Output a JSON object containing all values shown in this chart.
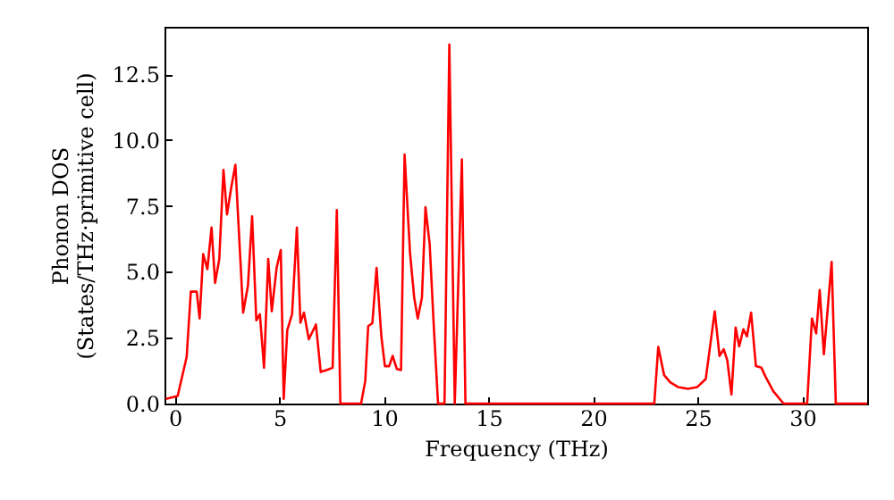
{
  "chart_data": {
    "type": "line",
    "xlabel": "Frequency (THz)",
    "ylabel": "Phonon DOS\n(States/THz·primitive cell)",
    "xlim": [
      -0.5,
      33.1
    ],
    "ylim": [
      0,
      14.3
    ],
    "xticks": [
      0,
      5,
      10,
      15,
      20,
      25,
      30
    ],
    "yticks": [
      {
        "value": 0,
        "label": "0.0"
      },
      {
        "value": 2.5,
        "label": "2.5"
      },
      {
        "value": 5,
        "label": "5.0"
      },
      {
        "value": 7.5,
        "label": "7.5"
      },
      {
        "value": 10,
        "label": "10.0"
      },
      {
        "value": 12.5,
        "label": "12.5"
      }
    ],
    "grid": false,
    "marker": "none",
    "line_style": "solid",
    "series": [
      {
        "color": "#ff0000",
        "x": [
          -0.44,
          0.13,
          0.56,
          0.76,
          1.04,
          1.18,
          1.35,
          1.55,
          1.75,
          1.92,
          2.12,
          2.32,
          2.49,
          2.69,
          2.89,
          3.26,
          3.49,
          3.69,
          3.89,
          4.06,
          4.26,
          4.46,
          4.63,
          4.86,
          5.06,
          5.2,
          5.37,
          5.6,
          5.83,
          6.0,
          6.17,
          6.4,
          6.74,
          6.97,
          7.25,
          7.54,
          7.74,
          7.91,
          8.9,
          9.1,
          9.24,
          9.44,
          9.64,
          9.87,
          10.04,
          10.24,
          10.41,
          10.61,
          10.81,
          10.98,
          11.24,
          11.44,
          11.61,
          11.81,
          11.98,
          12.18,
          12.38,
          12.58,
          12.89,
          13.12,
          13.38,
          13.72,
          13.89,
          22.92,
          23.11,
          23.39,
          23.68,
          24.05,
          24.53,
          24.98,
          25.38,
          25.81,
          26.04,
          26.24,
          26.41,
          26.61,
          26.81,
          26.98,
          27.18,
          27.35,
          27.55,
          27.78,
          28.04,
          28.24,
          28.61,
          29.1,
          30.23,
          30.46,
          30.66,
          30.83,
          31.03,
          31.4,
          31.6,
          33.1
        ],
        "values": [
          0.18,
          0.29,
          1.77,
          4.25,
          4.25,
          3.23,
          5.67,
          5.1,
          6.68,
          4.58,
          5.49,
          8.87,
          7.18,
          8.19,
          9.06,
          3.45,
          4.47,
          7.11,
          3.16,
          3.39,
          1.36,
          5.49,
          3.5,
          5.15,
          5.83,
          0.18,
          2.78,
          3.39,
          6.68,
          3.07,
          3.45,
          2.44,
          3.0,
          1.2,
          1.27,
          1.36,
          7.34,
          0,
          0,
          0.86,
          2.94,
          3.05,
          5.15,
          2.55,
          1.42,
          1.42,
          1.81,
          1.31,
          1.27,
          9.45,
          5.72,
          4.02,
          3.23,
          4.02,
          7.45,
          6.05,
          2.89,
          0,
          0,
          13.63,
          0,
          9.27,
          0,
          0,
          2.15,
          1.08,
          0.81,
          0.63,
          0.56,
          0.63,
          0.93,
          3.5,
          1.81,
          2.06,
          1.65,
          0.34,
          2.89,
          2.17,
          2.82,
          2.55,
          3.45,
          1.42,
          1.36,
          1.02,
          0.47,
          0,
          0,
          3.23,
          2.66,
          4.31,
          1.87,
          5.38,
          0,
          0
        ]
      }
    ]
  }
}
